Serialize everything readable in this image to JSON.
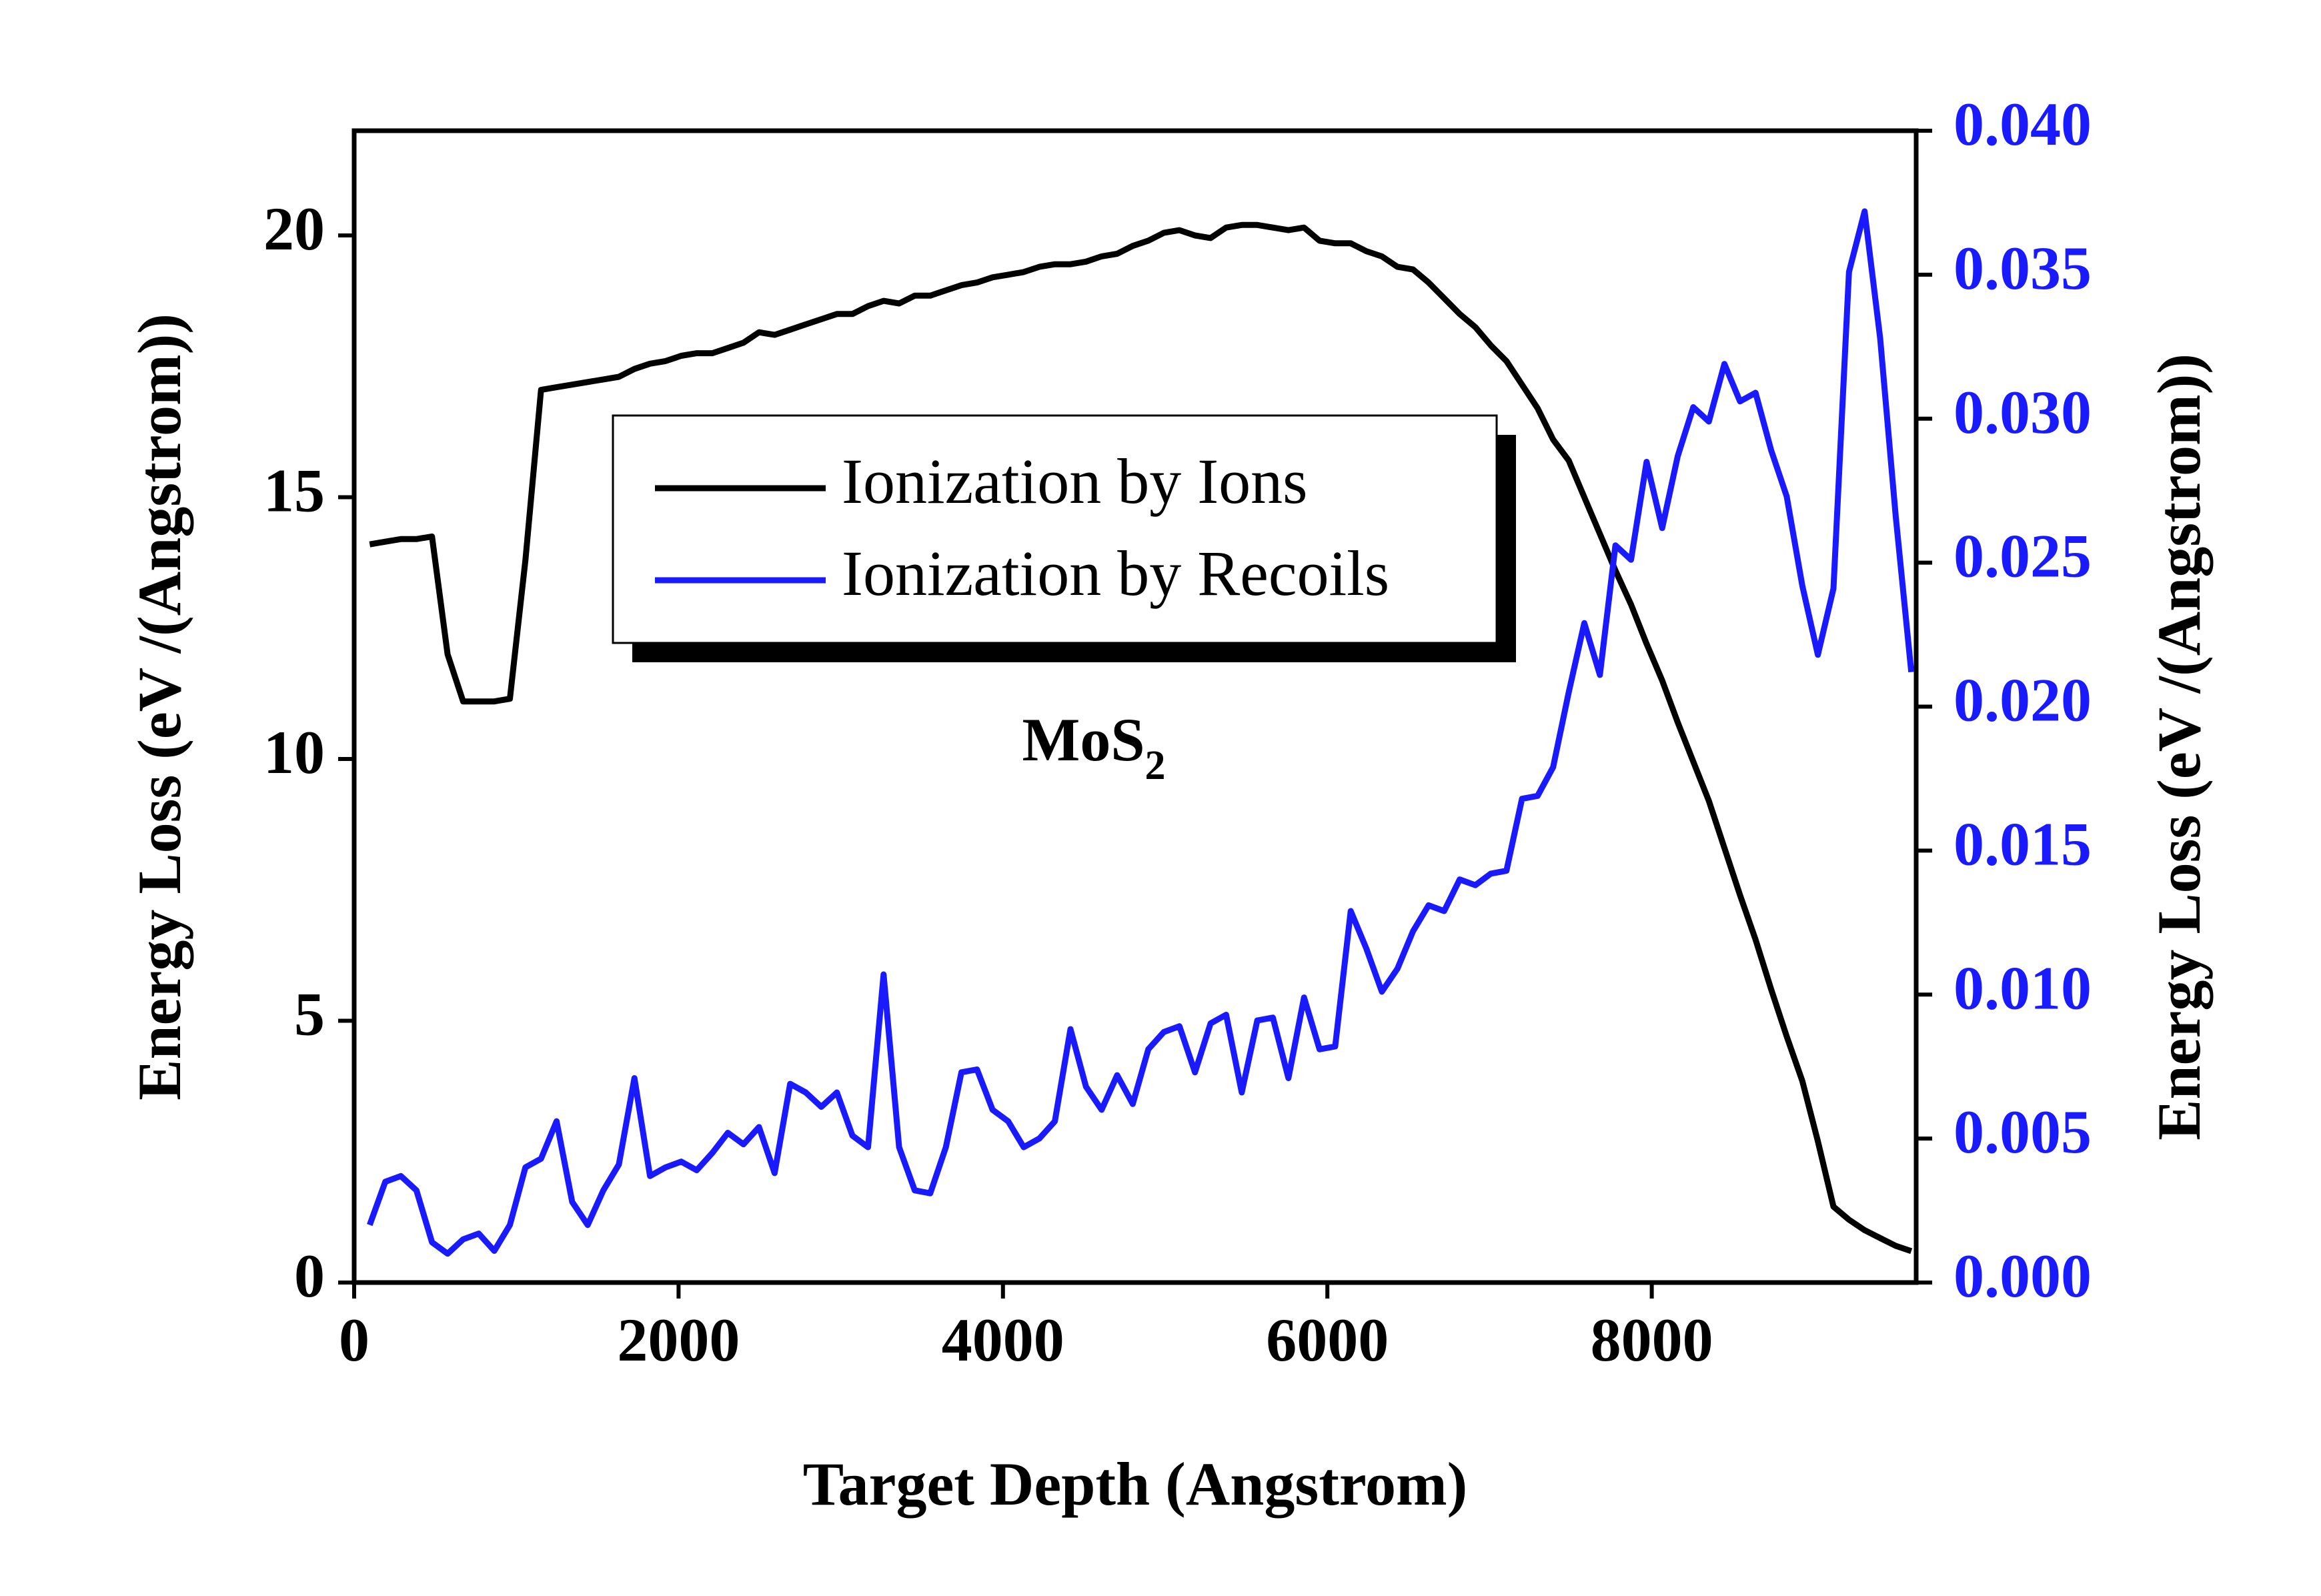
{
  "chart_data": {
    "type": "line",
    "xlabel": "Target Depth (Angstrom)",
    "ylabel": "Energy Loss (eV /(Angstrom))",
    "y2label": "Energy Loss (eV /(Angstrom))",
    "annotation": {
      "text": "MoS",
      "subscript": "2"
    },
    "xlim": [
      0,
      9630
    ],
    "xticks": [
      0,
      2000,
      4000,
      6000,
      8000
    ],
    "ylim": [
      0,
      22
    ],
    "yticks": [
      0,
      5,
      10,
      15,
      20
    ],
    "y2lim": [
      0,
      0.04
    ],
    "y2ticks": [
      {
        "value": 0,
        "label": "0.000"
      },
      {
        "value": 0.005,
        "label": "0.005"
      },
      {
        "value": 0.01,
        "label": "0.010"
      },
      {
        "value": 0.015,
        "label": "0.015"
      },
      {
        "value": 0.02,
        "label": "0.020"
      },
      {
        "value": 0.025,
        "label": "0.025"
      },
      {
        "value": 0.03,
        "label": "0.030"
      },
      {
        "value": 0.035,
        "label": "0.035"
      },
      {
        "value": 0.04,
        "label": "0.040"
      }
    ],
    "y2color": "#1a1aff",
    "x": [
      96,
      192,
      288,
      384,
      480,
      576,
      672,
      768,
      864,
      960,
      1056,
      1152,
      1248,
      1344,
      1440,
      1536,
      1632,
      1728,
      1824,
      1920,
      2016,
      2112,
      2208,
      2304,
      2400,
      2496,
      2592,
      2688,
      2784,
      2880,
      2976,
      3072,
      3168,
      3264,
      3360,
      3456,
      3552,
      3648,
      3744,
      3840,
      3936,
      4032,
      4128,
      4224,
      4320,
      4416,
      4512,
      4608,
      4704,
      4800,
      4896,
      4992,
      5088,
      5184,
      5280,
      5376,
      5472,
      5568,
      5664,
      5760,
      5856,
      5952,
      6048,
      6144,
      6240,
      6336,
      6432,
      6528,
      6624,
      6720,
      6816,
      6912,
      7008,
      7104,
      7200,
      7296,
      7392,
      7488,
      7584,
      7680,
      7776,
      7872,
      7968,
      8064,
      8160,
      8256,
      8352,
      8448,
      8544,
      8640,
      8736,
      8832,
      8928,
      9024,
      9120,
      9216,
      9312,
      9408,
      9504,
      9600
    ],
    "series": [
      {
        "name": "Ionization by Ions",
        "color": "#000000",
        "axis": "y",
        "values": [
          14.1,
          14.15,
          14.2,
          14.2,
          14.25,
          12.0,
          11.1,
          11.1,
          11.1,
          11.15,
          13.8,
          17.05,
          17.1,
          17.15,
          17.2,
          17.25,
          17.3,
          17.45,
          17.55,
          17.6,
          17.7,
          17.75,
          17.75,
          17.85,
          17.95,
          18.15,
          18.1,
          18.2,
          18.3,
          18.4,
          18.5,
          18.5,
          18.65,
          18.75,
          18.7,
          18.85,
          18.85,
          18.95,
          19.05,
          19.1,
          19.2,
          19.25,
          19.3,
          19.4,
          19.45,
          19.45,
          19.5,
          19.6,
          19.65,
          19.8,
          19.9,
          20.05,
          20.1,
          20.0,
          19.95,
          20.15,
          20.2,
          20.2,
          20.15,
          20.1,
          20.15,
          19.9,
          19.85,
          19.85,
          19.7,
          19.6,
          19.4,
          19.35,
          19.1,
          18.8,
          18.5,
          18.25,
          17.9,
          17.6,
          17.15,
          16.7,
          16.1,
          15.7,
          15.0,
          14.3,
          13.6,
          12.95,
          12.2,
          11.5,
          10.7,
          9.95,
          9.2,
          8.3,
          7.4,
          6.55,
          5.6,
          4.7,
          3.85,
          2.7,
          1.45,
          1.2,
          1.0,
          0.85,
          0.7,
          0.6
        ]
      },
      {
        "name": "Ionization by Recoils",
        "color": "#1a1aff",
        "axis": "y2",
        "values": [
          0.002,
          0.0035,
          0.0037,
          0.0032,
          0.0014,
          0.001,
          0.0015,
          0.0017,
          0.0011,
          0.002,
          0.004,
          0.0043,
          0.0056,
          0.0028,
          0.002,
          0.0032,
          0.0041,
          0.0071,
          0.0037,
          0.004,
          0.0042,
          0.0039,
          0.0045,
          0.0052,
          0.0048,
          0.0054,
          0.0038,
          0.0069,
          0.0066,
          0.0061,
          0.0066,
          0.0051,
          0.0047,
          0.0107,
          0.0047,
          0.0032,
          0.0031,
          0.0047,
          0.0073,
          0.0074,
          0.006,
          0.0056,
          0.0047,
          0.005,
          0.0056,
          0.0088,
          0.0068,
          0.006,
          0.0072,
          0.0062,
          0.0081,
          0.0087,
          0.0089,
          0.0073,
          0.009,
          0.0093,
          0.0066,
          0.0091,
          0.0092,
          0.0071,
          0.0099,
          0.0081,
          0.0082,
          0.0129,
          0.0116,
          0.0101,
          0.0109,
          0.0122,
          0.0131,
          0.0129,
          0.014,
          0.0138,
          0.0142,
          0.0143,
          0.0168,
          0.0169,
          0.0179,
          0.0205,
          0.0229,
          0.0211,
          0.0256,
          0.0251,
          0.0285,
          0.0262,
          0.0287,
          0.0304,
          0.0299,
          0.0319,
          0.0306,
          0.0309,
          0.0289,
          0.0273,
          0.0242,
          0.0218,
          0.0241,
          0.0351,
          0.0372,
          0.0328,
          0.0266,
          0.0212
        ]
      }
    ]
  }
}
